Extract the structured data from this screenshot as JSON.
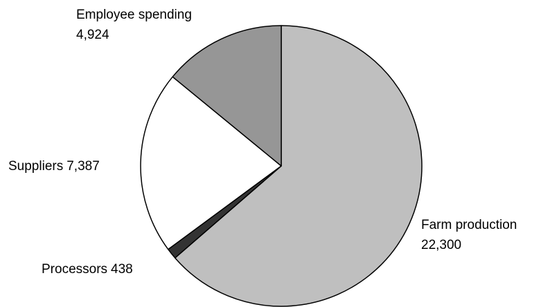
{
  "chart_data": {
    "type": "pie",
    "categories": [
      "Farm production",
      "Processors",
      "Suppliers",
      "Employee spending"
    ],
    "values": [
      22300,
      438,
      7387,
      4924
    ],
    "value_labels": [
      "22,300",
      "438",
      "7,387",
      "4,924"
    ],
    "colors": [
      "#bfbfbf",
      "#333333",
      "#ffffff",
      "#969696"
    ]
  }
}
